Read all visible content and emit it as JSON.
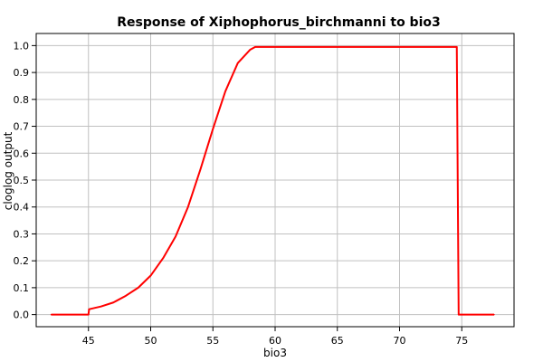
{
  "chart_data": {
    "type": "line",
    "title": "Response of Xiphophorus_birchmanni to bio3",
    "xlabel": "bio3",
    "ylabel": "cloglog output",
    "xlim": [
      40.8,
      79.2
    ],
    "ylim": [
      -0.045,
      1.045
    ],
    "x_ticks": [
      45,
      50,
      55,
      60,
      65,
      70,
      75
    ],
    "y_ticks": [
      0.0,
      0.1,
      0.2,
      0.3,
      0.4,
      0.5,
      0.6,
      0.7,
      0.8,
      0.9,
      1.0
    ],
    "x_tick_labels": [
      "45",
      "50",
      "55",
      "60",
      "65",
      "70",
      "75"
    ],
    "y_tick_labels": [
      "0.0",
      "0.1",
      "0.2",
      "0.3",
      "0.4",
      "0.5",
      "0.6",
      "0.7",
      "0.8",
      "0.9",
      "1.0"
    ],
    "grid": true,
    "series": [
      {
        "color": "#ff0000",
        "x": [
          42.0,
          45.0,
          45.05,
          46.0,
          47.0,
          48.0,
          49.0,
          50.0,
          51.0,
          52.0,
          53.0,
          54.0,
          55.0,
          56.0,
          57.0,
          58.0,
          58.4,
          74.6,
          74.75,
          77.6
        ],
        "y": [
          0.0,
          0.0,
          0.02,
          0.03,
          0.045,
          0.07,
          0.1,
          0.145,
          0.21,
          0.29,
          0.4,
          0.54,
          0.69,
          0.83,
          0.935,
          0.985,
          0.995,
          0.995,
          0.0,
          0.0
        ]
      }
    ]
  }
}
